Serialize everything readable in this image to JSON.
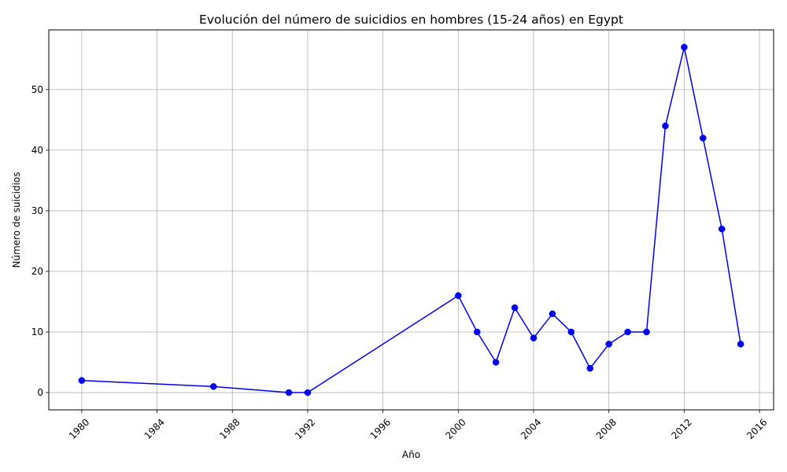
{
  "chart_data": {
    "type": "line",
    "title": "Evolución del número de suicidios en hombres (15-24 años) en Egypt",
    "xlabel": "Año",
    "ylabel": "Número de suicidios",
    "xlim": [
      1978.25,
      2016.75
    ],
    "ylim": [
      -2.85,
      59.85
    ],
    "x_ticks": [
      1980,
      1984,
      1988,
      1992,
      1996,
      2000,
      2004,
      2008,
      2012,
      2016
    ],
    "y_ticks": [
      0,
      10,
      20,
      30,
      40,
      50
    ],
    "grid": true,
    "color": "#0000ee",
    "series": [
      {
        "x": [
          1980,
          1987,
          1991,
          1992,
          2000,
          2001,
          2002,
          2003,
          2004,
          2005,
          2006,
          2007,
          2008,
          2009,
          2010,
          2011,
          2012,
          2013,
          2014,
          2015
        ],
        "values": [
          2,
          1,
          0,
          0,
          16,
          10,
          5,
          14,
          9,
          13,
          10,
          4,
          8,
          10,
          10,
          44,
          57,
          42,
          27,
          8
        ]
      }
    ]
  }
}
